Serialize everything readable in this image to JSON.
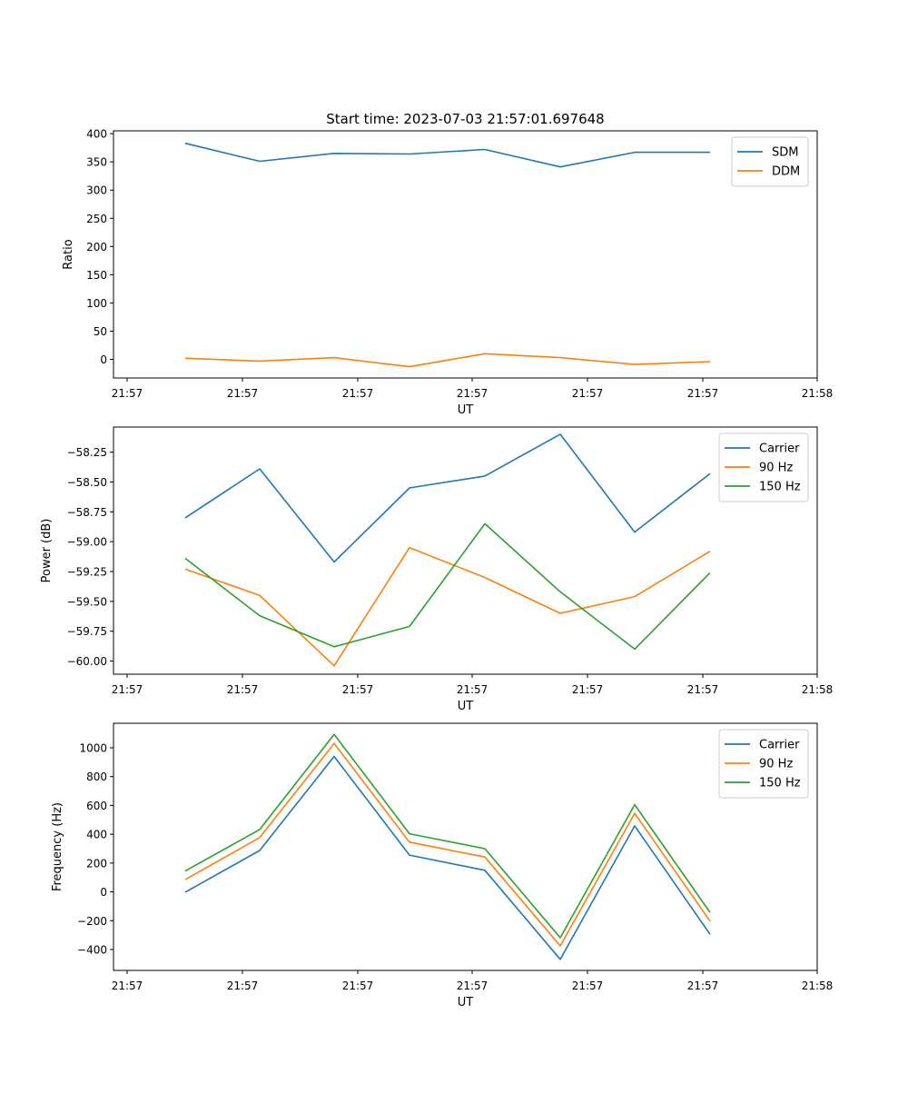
{
  "chart_data": [
    {
      "type": "line",
      "title": "Start time: 2023-07-03 21:57:01.697648",
      "xlabel": "UT",
      "ylabel": "Ratio",
      "x_tick_labels": [
        "21:57",
        "21:57",
        "21:57",
        "21:57",
        "21:57",
        "21:57",
        "21:58"
      ],
      "ylim": [
        -33,
        405
      ],
      "yticks": [
        0,
        50,
        100,
        150,
        200,
        250,
        300,
        350,
        400
      ],
      "ytick_labels": [
        "0",
        "50",
        "100",
        "150",
        "200",
        "250",
        "300",
        "350",
        "400"
      ],
      "legend": "top-right",
      "grid": false,
      "series": [
        {
          "name": "SDM",
          "color": "#1f77b4",
          "values": [
            383,
            351,
            365,
            364,
            372,
            341,
            367,
            367
          ]
        },
        {
          "name": "DDM",
          "color": "#ff7f0e",
          "values": [
            2,
            -3,
            3,
            -13,
            10,
            3,
            -9,
            -4
          ]
        }
      ]
    },
    {
      "type": "line",
      "title": "",
      "xlabel": "UT",
      "ylabel": "Power (dB)",
      "x_tick_labels": [
        "21:57",
        "21:57",
        "21:57",
        "21:57",
        "21:57",
        "21:57",
        "21:58"
      ],
      "ylim": [
        -60.11,
        -58.04
      ],
      "yticks": [
        -60.0,
        -59.75,
        -59.5,
        -59.25,
        -59.0,
        -58.75,
        -58.5,
        -58.25
      ],
      "ytick_labels": [
        "−60.00",
        "−59.75",
        "−59.50",
        "−59.25",
        "−59.00",
        "−58.75",
        "−58.50",
        "−58.25"
      ],
      "legend": "top-right",
      "grid": false,
      "series": [
        {
          "name": "Carrier",
          "color": "#1f77b4",
          "values": [
            -58.8,
            -58.39,
            -59.17,
            -58.55,
            -58.45,
            -58.1,
            -58.92,
            -58.43
          ]
        },
        {
          "name": "90 Hz",
          "color": "#ff7f0e",
          "values": [
            -59.23,
            -59.45,
            -60.04,
            -59.05,
            -59.3,
            -59.6,
            -59.46,
            -59.08
          ]
        },
        {
          "name": "150 Hz",
          "color": "#2ca02c",
          "values": [
            -59.14,
            -59.62,
            -59.88,
            -59.71,
            -58.85,
            -59.42,
            -59.9,
            -59.26
          ]
        }
      ]
    },
    {
      "type": "line",
      "title": "",
      "xlabel": "UT",
      "ylabel": "Frequency (Hz)",
      "x_tick_labels": [
        "21:57",
        "21:57",
        "21:57",
        "21:57",
        "21:57",
        "21:57",
        "21:58"
      ],
      "ylim": [
        -545,
        1170
      ],
      "yticks": [
        -400,
        -200,
        0,
        200,
        400,
        600,
        800,
        1000
      ],
      "ytick_labels": [
        "−400",
        "−200",
        "0",
        "200",
        "400",
        "600",
        "800",
        "1000"
      ],
      "legend": "top-right",
      "grid": false,
      "series": [
        {
          "name": "Carrier",
          "color": "#1f77b4",
          "values": [
            -2,
            287,
            940,
            255,
            150,
            -468,
            458,
            -295
          ]
        },
        {
          "name": "90 Hz",
          "color": "#ff7f0e",
          "values": [
            85,
            377,
            1030,
            345,
            242,
            -375,
            545,
            -203
          ]
        },
        {
          "name": "150 Hz",
          "color": "#2ca02c",
          "values": [
            145,
            433,
            1093,
            403,
            300,
            -318,
            605,
            -143
          ]
        }
      ]
    }
  ]
}
